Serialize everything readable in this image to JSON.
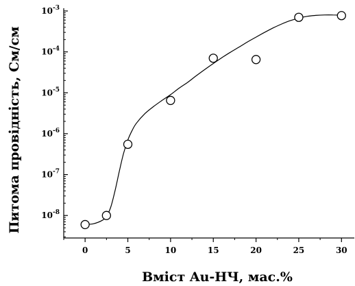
{
  "chart_data": {
    "type": "scatter",
    "title": "",
    "xlabel": "Вміст Au-НЧ, мас.%",
    "ylabel": "Питома провідність, См/см",
    "xlim": [
      -2.5,
      31.5
    ],
    "ylim_log10": [
      -8.55,
      -3.0
    ],
    "y_scale": "log",
    "grid": false,
    "x_ticks": [
      0,
      5,
      10,
      15,
      20,
      25,
      30
    ],
    "x_tick_labels": [
      "0",
      "5",
      "10",
      "15",
      "20",
      "25",
      "30"
    ],
    "y_tick_exponents": [
      -8,
      -7,
      -6,
      -5,
      -4,
      -3
    ],
    "y_tick_base": "10",
    "series": [
      {
        "marker": "open-circle",
        "x": [
          0,
          2.5,
          5,
          10,
          15,
          20,
          25,
          30
        ],
        "y": [
          6e-09,
          1e-08,
          5.5e-07,
          6.5e-06,
          7e-05,
          6.5e-05,
          0.0007,
          0.00077
        ]
      }
    ],
    "fit_curve": {
      "style": "solid-line",
      "x": [
        0,
        1,
        2,
        2.5,
        3,
        3.5,
        4,
        4.5,
        5,
        5.5,
        6,
        7,
        8,
        9,
        10,
        11,
        12,
        13,
        14,
        15,
        16,
        17,
        18,
        19,
        20,
        21,
        22,
        23,
        24,
        25,
        26,
        27,
        28,
        29,
        30
      ],
      "y": [
        6e-09,
        6.3e-09,
        7.6e-09,
        9.5e-09,
        1.6e-08,
        4e-08,
        1.2e-07,
        3.3e-07,
        7e-07,
        1.2e-06,
        1.8e-06,
        3.1e-06,
        4.6e-06,
        6.5e-06,
        9e-06,
        1.3e-05,
        1.8e-05,
        2.6e-05,
        3.7e-05,
        5.2e-05,
        7.2e-05,
        9.8e-05,
        0.00013,
        0.000175,
        0.00023,
        0.0003,
        0.000385,
        0.00048,
        0.00058,
        0.00067,
        0.00074,
        0.00078,
        0.0008,
        0.0008,
        0.00079
      ]
    }
  }
}
